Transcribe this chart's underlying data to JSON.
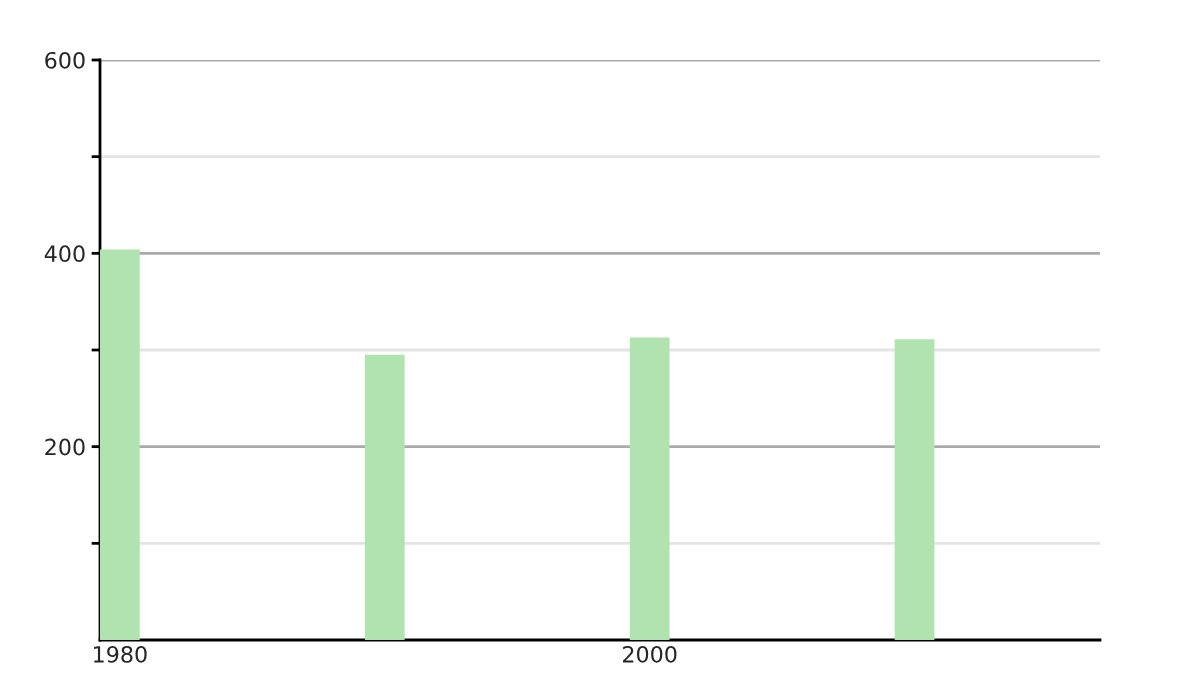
{
  "chart_data": {
    "type": "bar",
    "x": [
      1980,
      1990,
      2000,
      2010
    ],
    "values": [
      404,
      295,
      313,
      311
    ],
    "color": "#b0e3b0",
    "xlim": [
      1979.25,
      2017
    ],
    "xticks": [
      1980,
      2000
    ],
    "ylim": [
      0,
      600
    ],
    "yticks": [
      {
        "value": 100,
        "label": null
      },
      200,
      {
        "value": 300,
        "label": null
      },
      400,
      {
        "value": 500,
        "label": null
      },
      600
    ],
    "grid": "y"
  }
}
